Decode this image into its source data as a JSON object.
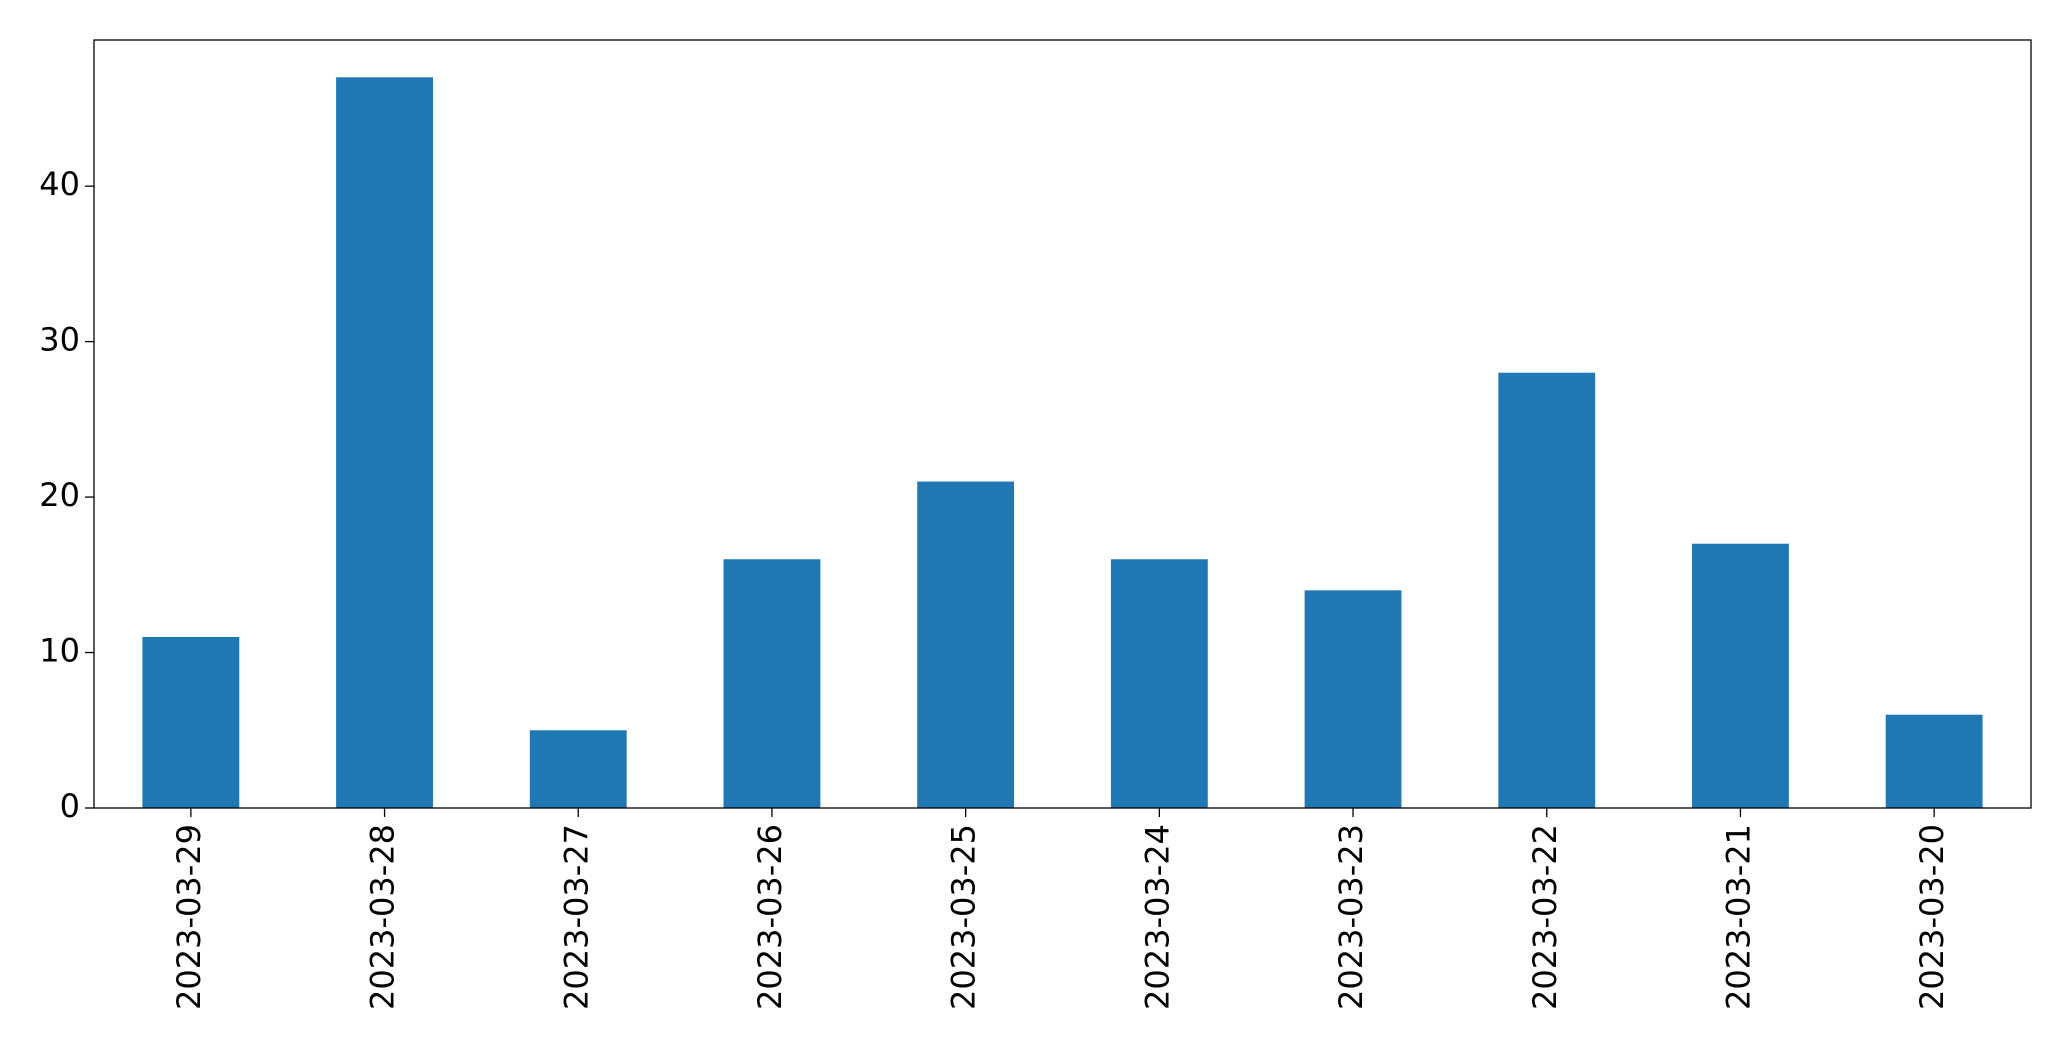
{
  "chart_data": {
    "type": "bar",
    "categories": [
      "2023-03-29",
      "2023-03-28",
      "2023-03-27",
      "2023-03-26",
      "2023-03-25",
      "2023-03-24",
      "2023-03-23",
      "2023-03-22",
      "2023-03-21",
      "2023-03-20"
    ],
    "values": [
      11,
      47,
      5,
      16,
      21,
      16,
      14,
      28,
      17,
      6
    ],
    "color": "#1f77b4",
    "ylim": [
      0,
      49.4
    ],
    "yticks": [
      0,
      10,
      20,
      30,
      40
    ],
    "grid": false
  }
}
